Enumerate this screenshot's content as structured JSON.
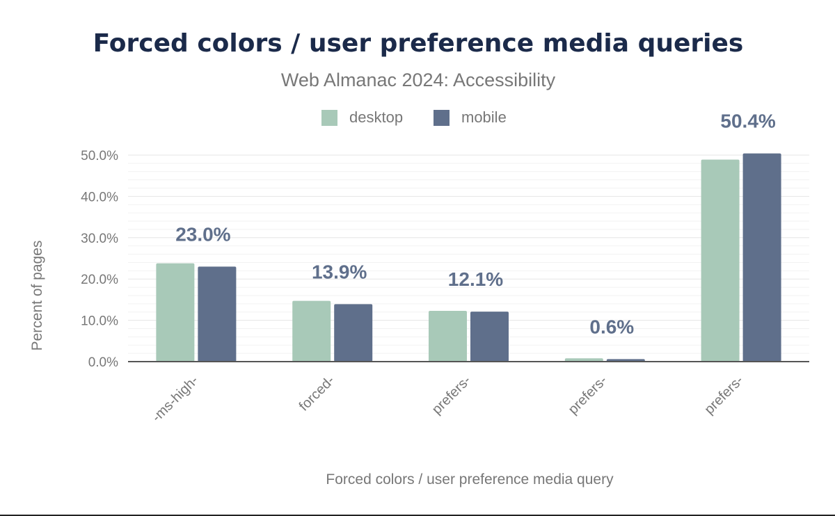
{
  "chart_data": {
    "type": "bar",
    "title": "Forced colors / user preference media queries",
    "subtitle": "Web Almanac 2024: Accessibility",
    "xlabel": "Forced colors / user preference media query",
    "ylabel": "Percent of pages",
    "categories": [
      "-ms-high-",
      "forced-",
      "prefers-",
      "prefers-",
      "prefers-"
    ],
    "series": [
      {
        "name": "desktop",
        "color": "#a8c9b8",
        "values": [
          23.8,
          14.7,
          12.3,
          0.8,
          48.9
        ]
      },
      {
        "name": "mobile",
        "color": "#5f6f8b",
        "values": [
          23.0,
          13.9,
          12.1,
          0.6,
          50.4
        ]
      }
    ],
    "data_labels": [
      "23.0%",
      "13.9%",
      "12.1%",
      "0.6%",
      "50.4%"
    ],
    "ylim": [
      0,
      50
    ],
    "yticks": [
      "0.0%",
      "10.0%",
      "20.0%",
      "30.0%",
      "40.0%",
      "50.0%"
    ],
    "grid": true,
    "legend_position": "top"
  }
}
